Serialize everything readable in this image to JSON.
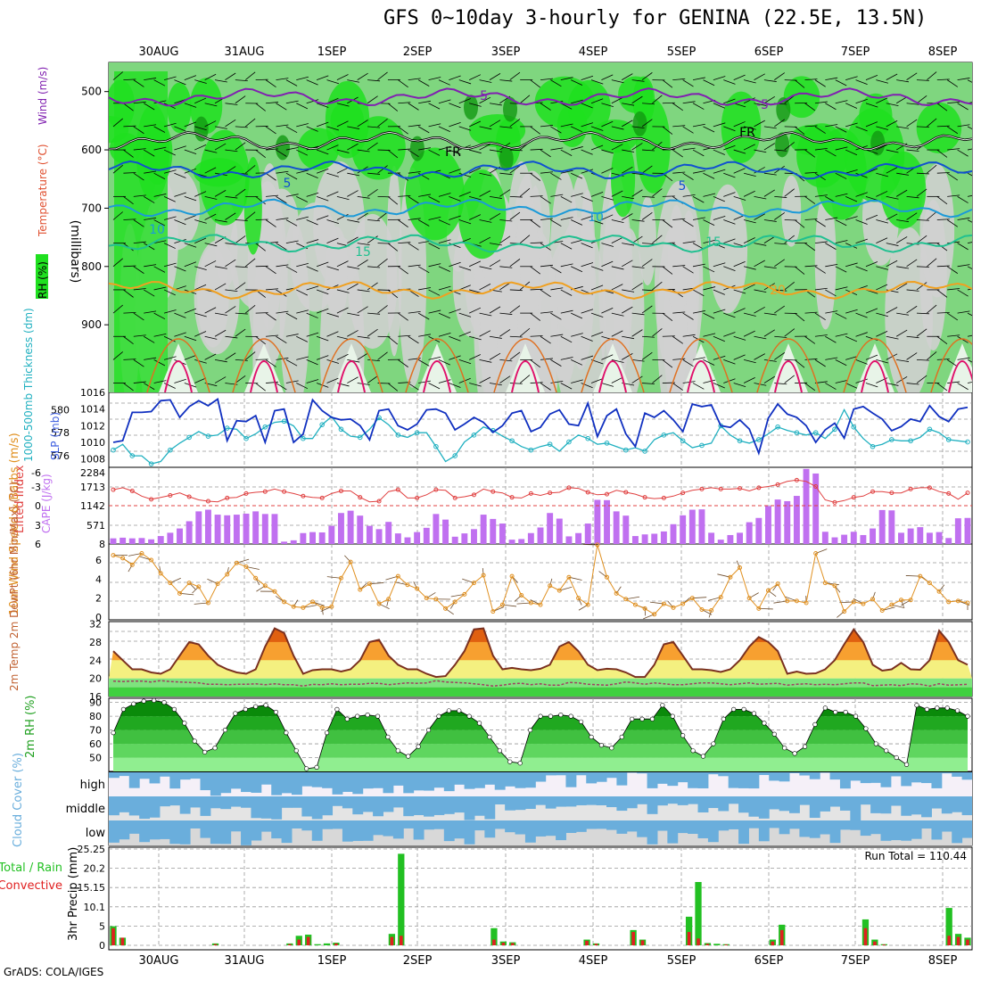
{
  "title": "GFS 0~10day 3-hourly for GENINA (22.5E, 13.5N)",
  "credit": "GrADS: COLA/IGES",
  "date_labels": [
    "30AUG",
    "31AUG",
    "1SEP",
    "2SEP",
    "3SEP",
    "4SEP",
    "5SEP",
    "6SEP",
    "7SEP",
    "8SEP"
  ],
  "colors": {
    "grid": "#888888",
    "rh_light": "#d0d0d0",
    "rh_mid": "#7fd67f",
    "rh_green": "#1fe01f",
    "rh_dark": "#119911",
    "slp": "#1030c0",
    "thick": "#20b0c0",
    "li": "#e04040",
    "cape": "#c070f0",
    "wind": "#e09020",
    "t_fill": "#f4f080",
    "t_orange": "#f7a030",
    "t_dark": "#e06010",
    "rh2_dark": "#0a8a0a",
    "cloud": "#6aaedc",
    "precip_total": "#22c022",
    "precip_conv": "#e02020"
  },
  "chart_data": [
    {
      "panel": "upper-air",
      "type": "heatmap",
      "ylabel": "(millibars)",
      "yaxis_ticks": [
        500,
        600,
        700,
        800,
        900
      ],
      "ylim": [
        1016,
        450
      ],
      "legend_labels": [
        "RH (%)",
        "Temperature (°C)",
        "Wind (m/s)"
      ],
      "isotherms": [
        {
          "label": "-5",
          "level": 510
        },
        {
          "label": "FR",
          "level": 585
        },
        {
          "label": "5",
          "level": 635
        },
        {
          "label": "10",
          "level": 700
        },
        {
          "label": "15",
          "level": 760
        },
        {
          "label": "20",
          "level": 840
        }
      ],
      "contour_texts": [
        "-5",
        "-5",
        "FR",
        "FR",
        "5",
        "5",
        "10",
        "10",
        "15",
        "15",
        "20"
      ]
    },
    {
      "panel": "slp-thickness",
      "type": "line",
      "ylabel_left": "1000-500mb Thickness (dm)",
      "ylabel_right": "SLP (mb)",
      "left_ticks": [
        576,
        578,
        580
      ],
      "right_ticks": [
        1008,
        1010,
        1012,
        1014,
        1016
      ],
      "ylim_slp": [
        1007,
        1016
      ],
      "ylim_thick": [
        575,
        581.5
      ],
      "slp": [
        1010,
        1010.2,
        1013.6,
        1013.6,
        1013.7,
        1015,
        1015.1,
        1013,
        1014.3,
        1015,
        1014.4,
        1015.2,
        1010.2,
        1012.6,
        1012.5,
        1013.2,
        1010,
        1013.8,
        1014,
        1010,
        1011,
        1015.1,
        1013.8,
        1013,
        1012.7,
        1012.8,
        1012,
        1010.3,
        1013.8,
        1014,
        1012,
        1011.5,
        1012.2,
        1013.9,
        1014,
        1013.5,
        1011.5,
        1012.2,
        1013,
        1012.4,
        1011.2,
        1012,
        1013.5,
        1013.8,
        1011.3,
        1011.8,
        1013.4,
        1013.9,
        1012.2,
        1012,
        1014.7,
        1010.7,
        1013.2,
        1014,
        1011,
        1009.5,
        1013.5,
        1013,
        1013.8,
        1012.7,
        1011.3,
        1014.6,
        1014.3,
        1014.5,
        1012,
        1011.8,
        1012.7,
        1011.6,
        1008.7,
        1012.9,
        1014.6,
        1013.4,
        1013,
        1012,
        1010,
        1011.5,
        1012.3,
        1010.5,
        1014,
        1014.3,
        1013.5,
        1012.8,
        1011.4,
        1011.9,
        1012.8,
        1012.5,
        1014.4,
        1013.1,
        1012.5,
        1014,
        1014.2
      ],
      "thickness": [
        576.5,
        577,
        576,
        576,
        575.3,
        575.5,
        576.5,
        577.1,
        577.6,
        578.1,
        577.7,
        577.8,
        578.4,
        578.3,
        577.5,
        577.9,
        578.5,
        578.9,
        579,
        578.6,
        577.5,
        577.5,
        578.7,
        579.4,
        578.3,
        577.7,
        577.6,
        578.3,
        579.3,
        578.7,
        577.8,
        577.6,
        578,
        578,
        576.8,
        575.5,
        576,
        577.2,
        577.8,
        578.5,
        578.2,
        577.7,
        577.3,
        576.8,
        576.5,
        576.8,
        577,
        576.4,
        577.2,
        577.8,
        577.5,
        577,
        577.1,
        576.8,
        576.5,
        576.7,
        576.4,
        577.4,
        577.8,
        578,
        577.3,
        576.7,
        576.9,
        577.1,
        578.6,
        577.8,
        577.3,
        577.1,
        577.4,
        577.9,
        578.5,
        578.2,
        578,
        577.8,
        578,
        577.5,
        578.3,
        580,
        578.5,
        577.5,
        576.8,
        577,
        577.4,
        577.3,
        577.3,
        577.6,
        578.3,
        578,
        577.4,
        577.3,
        577.2
      ]
    },
    {
      "panel": "stability",
      "type": "bar",
      "ylabel_left": "Lifted Index",
      "ylabel_right": "CAPE (J/kg)",
      "li_ticks": [
        "-6",
        "-3",
        "0",
        "3",
        "6"
      ],
      "cape_ticks": [
        "2284",
        "1713",
        "1142",
        "571",
        "8"
      ],
      "lifted_index": [
        -2.5,
        -2.8,
        -2.3,
        -1.5,
        -1,
        -1.3,
        -1.6,
        -2,
        -1.4,
        -0.9,
        -0.7,
        -0.6,
        -1.2,
        -1.3,
        -1.9,
        -2.1,
        -2.2,
        -2.6,
        -2.2,
        -1.9,
        -1.5,
        -1.3,
        -1.2,
        -1.9,
        -2.3,
        -2.3,
        -1.3,
        -0.6,
        -0.7,
        -2.2,
        -2.5,
        -1.2,
        -1.2,
        -1.7,
        -2.5,
        -2.4,
        -1.2,
        -1.4,
        -1.7,
        -2.6,
        -2.2,
        -2,
        -1.3,
        -1.2,
        -1.9,
        -1.6,
        -2,
        -2.1,
        -2.8,
        -2.7,
        -2.1,
        -1.7,
        -1.8,
        -2.4,
        -2.1,
        -1.8,
        -1.3,
        -1.1,
        -1.2,
        -1.5,
        -2,
        -2.4,
        -2.6,
        -2.8,
        -2.6,
        -2.6,
        -2.7,
        -2.3,
        -2.8,
        -3,
        -3.3,
        -3.8,
        -4,
        -3.8,
        -3,
        -0.9,
        -0.5,
        -0.8,
        -1.3,
        -1.5,
        -2.2,
        -2.2,
        -2,
        -2,
        -2.6,
        -2.8,
        -2.8,
        -2.2,
        -1.9,
        -1,
        -2
      ],
      "cape": [
        180,
        200,
        180,
        190,
        150,
        250,
        350,
        480,
        700,
        1000,
        1050,
        900,
        880,
        900,
        930,
        1000,
        920,
        920,
        80,
        120,
        340,
        370,
        360,
        560,
        950,
        1020,
        870,
        560,
        460,
        680,
        330,
        210,
        370,
        500,
        920,
        750,
        230,
        330,
        460,
        900,
        770,
        630,
        140,
        160,
        340,
        510,
        950,
        780,
        240,
        340,
        630,
        1350,
        1340,
        1000,
        870,
        250,
        300,
        320,
        390,
        610,
        880,
        1050,
        1060,
        350,
        140,
        280,
        350,
        670,
        800,
        1160,
        1360,
        1310,
        1470,
        2290,
        2150,
        380,
        210,
        290,
        380,
        280,
        480,
        1040,
        1030,
        350,
        480,
        520,
        350,
        370,
        190,
        790,
        800
      ]
    },
    {
      "panel": "10m-wind",
      "type": "line",
      "ylabel": "10m Wind Speed & Barbs (m/s)",
      "ticks": [
        0,
        2,
        4,
        6
      ],
      "ylim": [
        0,
        7.5
      ],
      "values": [
        6.5,
        6.2,
        5.5,
        6.7,
        6,
        4.6,
        3.6,
        2.5,
        3.6,
        3.2,
        1.5,
        3.5,
        4.5,
        5.7,
        5.3,
        4.1,
        3.3,
        2.7,
        1.6,
        1.1,
        1,
        1.6,
        1,
        1.1,
        4.1,
        5.8,
        2.9,
        3.5,
        1.4,
        1.9,
        4.3,
        3.4,
        3,
        2,
        1.9,
        0.9,
        1.6,
        2.4,
        3.6,
        4.4,
        0.6,
        1.3,
        4.3,
        2.3,
        1.5,
        1.3,
        3.3,
        2.8,
        4.2,
        2,
        1.3,
        7.6,
        4.2,
        2.5,
        1.9,
        1.3,
        0.9,
        0.3,
        1.4,
        1,
        1.4,
        2,
        0.8,
        0.7,
        2.1,
        4.2,
        5.2,
        2,
        0.9,
        2.8,
        3.5,
        1.7,
        1.7,
        1.5,
        6.7,
        3.6,
        3.3,
        0.6,
        1.6,
        1.4,
        1.9,
        0.7,
        1.3,
        1.8,
        1.8,
        4.3,
        3.6,
        2.7,
        1.6,
        1.7,
        1.5
      ]
    },
    {
      "panel": "2m-temp",
      "type": "area",
      "ylabel": "2m Temp 2m DewPt (6hr Min/Max) (°C)",
      "ticks": [
        16,
        20,
        24,
        28,
        32
      ],
      "ylim": [
        16,
        32.5
      ],
      "temperature": [
        26,
        24,
        22,
        22,
        21.3,
        21,
        22,
        25,
        28,
        27.5,
        25,
        23,
        22,
        21.3,
        21,
        22,
        27,
        31,
        30,
        25,
        21,
        21.8,
        22,
        22,
        21.5,
        22,
        24,
        28,
        28.5,
        25,
        23,
        22,
        22,
        21,
        20.3,
        20.5,
        23,
        26,
        30.8,
        31,
        25,
        22,
        22.3,
        22,
        21.8,
        22.1,
        23,
        27,
        28,
        26,
        23,
        21.8,
        22.1,
        22,
        21.3,
        20.3,
        20.3,
        23,
        27.5,
        28,
        25,
        22,
        22,
        21.8,
        21.4,
        22,
        24,
        27,
        29.1,
        28,
        26,
        21,
        21.5,
        21,
        21.1,
        22,
        24,
        27.5,
        30.8,
        28,
        23,
        21.7,
        22,
        23.4,
        22,
        21.9,
        24,
        30.5,
        28,
        24,
        23
      ],
      "dewpoint": [
        19.4,
        19.3,
        19.4,
        19.4,
        19.2,
        19.5,
        19.3,
        19.2,
        19.1,
        19,
        18.7,
        18.7,
        18.6,
        18.7,
        18.7,
        18.8,
        18.6,
        18.8,
        18.6,
        18.6,
        18.3,
        18.7,
        18.6,
        18.8,
        18.6,
        18.7,
        18.7,
        18.9,
        18.9,
        18.6,
        18.8,
        19,
        18.9,
        19,
        19.5,
        19.2,
        19.1,
        19,
        18.8,
        18.6,
        18.3,
        18.5,
        18.8,
        18.9,
        18.6,
        18.8,
        18.5,
        18.5,
        19.1,
        19,
        18.7,
        18.6,
        18.5,
        18.8,
        19.2,
        19,
        18.7,
        19,
        18.8,
        18.6,
        18.6,
        18.8,
        19,
        19,
        18.8,
        18.6,
        18.8,
        19,
        18.7,
        18.8,
        18.9,
        18.5,
        18.7,
        18.8,
        18.6,
        18.7,
        18.6,
        18.8,
        19,
        19,
        18.4,
        18.5,
        18.6,
        18.4,
        18.8,
        18.7,
        18.3,
        18.8,
        18.5,
        18.6,
        18.7
      ]
    },
    {
      "panel": "2m-rh",
      "type": "area",
      "ylabel": "2m RH (%)",
      "ticks": [
        50,
        60,
        70,
        80,
        90
      ],
      "ylim": [
        40,
        93
      ],
      "values": [
        68,
        85,
        89,
        91,
        91.5,
        90,
        85,
        75,
        62,
        54,
        57,
        70,
        82,
        85,
        87,
        88,
        83,
        68,
        55,
        42,
        43,
        68,
        85,
        78,
        80,
        81,
        80,
        65,
        55,
        51,
        58,
        70,
        80,
        84,
        84,
        80,
        75,
        65,
        55,
        47,
        46,
        70,
        80,
        80,
        81,
        80,
        76,
        65,
        59,
        57,
        65,
        78,
        78,
        78,
        88,
        80,
        66,
        55,
        51,
        60,
        78,
        85,
        85,
        82,
        75,
        67,
        57,
        53,
        58,
        74,
        86,
        83,
        83,
        80,
        71,
        60,
        55,
        50,
        45,
        88,
        85,
        86,
        86,
        84,
        80
      ],
      "points": 85
    },
    {
      "panel": "cloud-cover",
      "type": "heatmap",
      "ylabel": "Cloud Cover (%)",
      "rows": [
        "high",
        "middle",
        "low"
      ]
    },
    {
      "panel": "precip",
      "type": "bar",
      "ylabel": "3hr Precip (mm)",
      "legend": [
        "Total / Rain",
        "Convective"
      ],
      "ticks": [
        "0",
        "5",
        "10.1",
        "15.15",
        "20.2",
        "25.25"
      ],
      "ylim": [
        0,
        25.25
      ],
      "run_total_label": "Run Total = 110.44",
      "total": [
        5,
        2,
        0,
        0,
        0,
        0,
        0,
        0,
        0,
        0,
        0,
        0.5,
        0,
        0,
        0,
        0,
        0,
        0,
        0,
        0.5,
        2.5,
        2.8,
        0.3,
        0.5,
        0.7,
        0,
        0,
        0,
        0,
        0,
        3,
        24,
        0,
        0,
        0,
        0,
        0,
        0,
        0,
        0,
        0,
        4.5,
        1,
        0.8,
        0,
        0,
        0,
        0,
        0,
        0,
        0,
        1.5,
        0.5,
        0,
        0,
        0,
        4,
        1.5,
        0,
        0,
        0,
        0,
        7.5,
        16.6,
        0.6,
        0.4,
        0.3,
        0,
        0,
        0,
        0,
        1.5,
        5.4,
        0,
        0,
        0,
        0,
        0,
        0,
        0,
        0,
        6.8,
        1.5,
        0.3,
        0,
        0,
        0,
        0,
        0,
        0,
        9.8,
        3,
        2
      ],
      "convective": [
        4.5,
        2,
        0,
        0,
        0,
        0,
        0,
        0,
        0,
        0,
        0,
        0.3,
        0,
        0,
        0,
        0,
        0,
        0,
        0,
        0.3,
        1.5,
        2.2,
        0,
        0,
        0.5,
        0,
        0,
        0,
        0,
        0,
        2.2,
        2.5,
        0,
        0,
        0,
        0,
        0,
        0,
        0,
        0,
        0,
        1.5,
        0.7,
        0.6,
        0,
        0,
        0,
        0,
        0,
        0,
        0,
        1.2,
        0.4,
        0,
        0,
        0,
        3.5,
        1.3,
        0,
        0,
        0,
        0,
        3.5,
        1.8,
        0.4,
        0,
        0.2,
        0,
        0,
        0,
        0,
        1,
        4,
        0,
        0,
        0,
        0,
        0,
        0,
        0,
        0,
        4.5,
        1,
        0.2,
        0,
        0,
        0,
        0,
        0,
        0,
        2.5,
        2.2,
        1.5
      ]
    }
  ]
}
